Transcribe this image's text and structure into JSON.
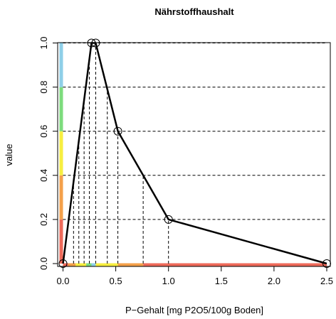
{
  "chart_data": {
    "type": "line",
    "title": "Nährstoffhaushalt",
    "xlabel": "P−Gehalt [mg P2O5/100g Boden]",
    "ylabel": "value",
    "xlim": [
      0,
      2.5
    ],
    "ylim": [
      0,
      1
    ],
    "x_ticks": [
      "0.0",
      "0.5",
      "1.0",
      "1.5",
      "2.0",
      "2.5"
    ],
    "y_ticks": [
      "0.0",
      "0.2",
      "0.4",
      "0.6",
      "0.8",
      "1.0"
    ],
    "grid": false,
    "legend": "none",
    "series": [
      {
        "x": [
          0,
          0.27,
          0.31,
          0.52,
          1.0,
          2.5
        ],
        "y": [
          0,
          1.0,
          1.0,
          0.6,
          0.2,
          0.0
        ],
        "line_color": "#000000",
        "marker": "open-circle"
      }
    ],
    "reference_lines": {
      "horizontal_y": [
        0.2,
        0.4,
        0.6,
        0.8,
        1.0
      ],
      "vertical_x": [
        0.1,
        0.15,
        0.2,
        0.25,
        0.31,
        0.42,
        0.52,
        0.76,
        1.0
      ]
    },
    "color_bands": {
      "bottom": [
        {
          "from": 0,
          "to": 0.05,
          "color": "#ee6a5a"
        },
        {
          "from": 0.05,
          "to": 0.12,
          "color": "#f4a04a"
        },
        {
          "from": 0.12,
          "to": 0.22,
          "color": "#f7ee40"
        },
        {
          "from": 0.22,
          "to": 0.27,
          "color": "#7ddc7d"
        },
        {
          "from": 0.27,
          "to": 0.31,
          "color": "#8ecfe8"
        },
        {
          "from": 0.31,
          "to": 0.52,
          "color": "#f7ee40"
        },
        {
          "from": 0.52,
          "to": 0.76,
          "color": "#f4a04a"
        },
        {
          "from": 0.76,
          "to": 2.5,
          "color": "#ee6a5a"
        }
      ],
      "left": [
        {
          "from": 0,
          "to": 0.2,
          "color": "#ee6a5a"
        },
        {
          "from": 0.2,
          "to": 0.4,
          "color": "#f4a04a"
        },
        {
          "from": 0.4,
          "to": 0.6,
          "color": "#f7ee40"
        },
        {
          "from": 0.6,
          "to": 0.8,
          "color": "#7ddc7d"
        },
        {
          "from": 0.8,
          "to": 1.0,
          "color": "#8ecfe8"
        }
      ]
    }
  }
}
